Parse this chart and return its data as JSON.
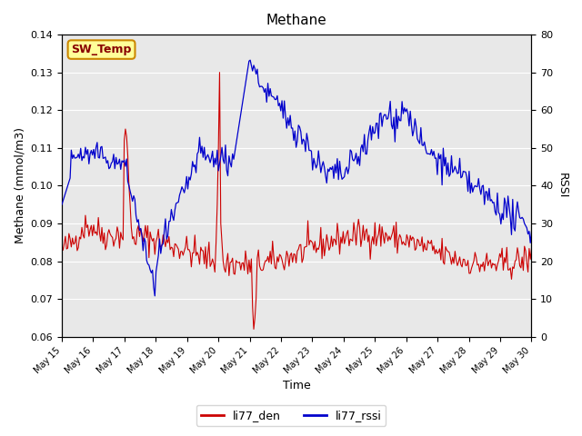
{
  "title": "Methane",
  "ylabel_left": "Methane (mmol/m3)",
  "ylabel_right": "RSSI",
  "xlabel": "Time",
  "ylim_left": [
    0.06,
    0.14
  ],
  "ylim_right": [
    0,
    80
  ],
  "yticks_left": [
    0.06,
    0.07,
    0.08,
    0.09,
    0.1,
    0.11,
    0.12,
    0.13,
    0.14
  ],
  "yticks_right": [
    0,
    10,
    20,
    30,
    40,
    50,
    60,
    70,
    80
  ],
  "color_den": "#cc0000",
  "color_rssi": "#0000cc",
  "bg_color": "#e8e8e8",
  "legend_label_den": "li77_den",
  "legend_label_rssi": "li77_rssi",
  "annotation_text": "SW_Temp",
  "annotation_bg": "#ffff99",
  "annotation_border": "#cc8800",
  "annotation_text_color": "#880000",
  "x_tick_labels": [
    "May 15",
    "May 16",
    "May 17",
    "May 18",
    "May 19",
    "May 20",
    "May 21",
    "May 22",
    "May 23",
    "May 24",
    "May 25",
    "May 26",
    "May 27",
    "May 28",
    "May 29",
    "May 30"
  ],
  "n_points": 400
}
